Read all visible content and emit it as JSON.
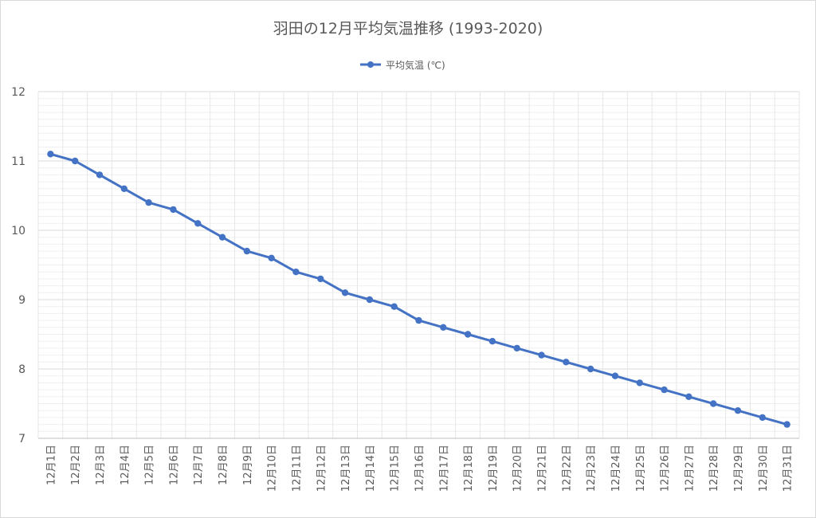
{
  "chart_data": {
    "type": "line",
    "title": "羽田の12月平均気温推移 (1993-2020)",
    "xlabel": "",
    "ylabel": "",
    "ylim": [
      7,
      12
    ],
    "yticks": [
      "7",
      "8",
      "9",
      "10",
      "11",
      "12"
    ],
    "grid": true,
    "legend_position": "top",
    "categories": [
      "12月1日",
      "12月2日",
      "12月3日",
      "12月4日",
      "12月5日",
      "12月6日",
      "12月7日",
      "12月8日",
      "12月9日",
      "12月10日",
      "12月11日",
      "12月12日",
      "12月13日",
      "12月14日",
      "12月15日",
      "12月16日",
      "12月17日",
      "12月18日",
      "12月19日",
      "12月20日",
      "12月21日",
      "12月22日",
      "12月23日",
      "12月24日",
      "12月25日",
      "12月26日",
      "12月27日",
      "12月28日",
      "12月29日",
      "12月30日",
      "12月31日"
    ],
    "series": [
      {
        "name": "平均気温 (℃)",
        "color": "#4472c4",
        "values": [
          11.1,
          11.0,
          10.8,
          10.6,
          10.4,
          10.3,
          10.1,
          9.9,
          9.7,
          9.6,
          9.4,
          9.3,
          9.1,
          9.0,
          8.9,
          8.7,
          8.6,
          8.5,
          8.4,
          8.3,
          8.2,
          8.1,
          8.0,
          7.9,
          7.8,
          7.7,
          7.6,
          7.5,
          7.4,
          7.3,
          7.2
        ]
      }
    ]
  }
}
